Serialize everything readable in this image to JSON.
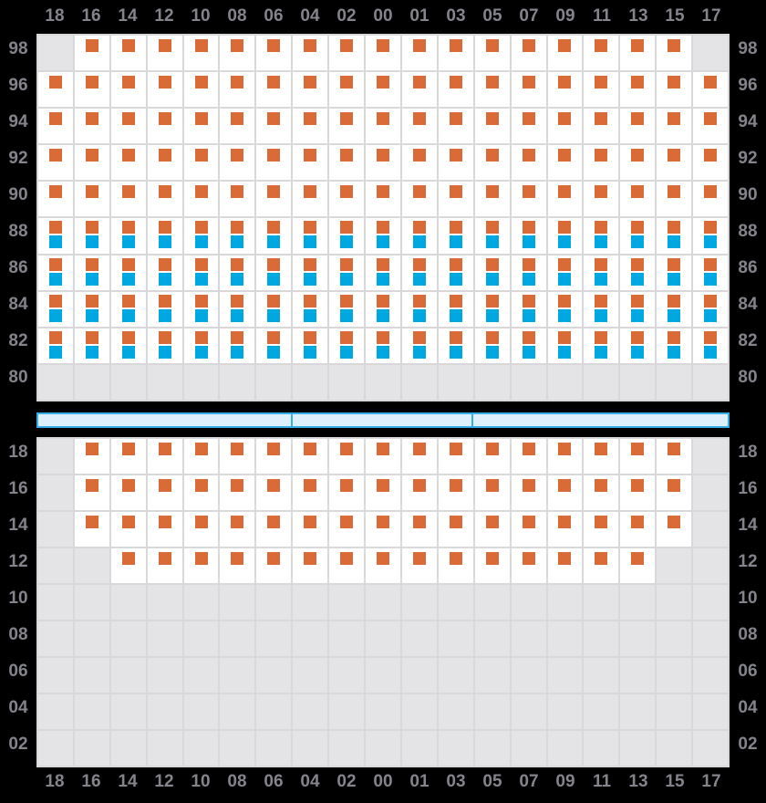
{
  "colors": {
    "background": "#000000",
    "cell_white": "#ffffff",
    "cell_gray": "#e4e4e6",
    "grid_line": "#d8d8da",
    "orange_marker": "#db6b36",
    "blue_marker": "#00a8e1",
    "bar_fill": "#ddf0fb",
    "bar_border": "#35ade6",
    "label_text": "#84848c"
  },
  "column_labels": [
    "18",
    "16",
    "14",
    "12",
    "10",
    "08",
    "06",
    "04",
    "02",
    "00",
    "01",
    "03",
    "05",
    "07",
    "09",
    "11",
    "13",
    "15",
    "17"
  ],
  "cell_types": {
    "g": "blocked-gray",
    "o": "orange-marker",
    "d": "orange-and-blue-marker"
  },
  "top_panel": {
    "rows": [
      {
        "label": "98",
        "cells": "gooooooooooooooooog"
      },
      {
        "label": "96",
        "cells": "ooooooooooooooooooo"
      },
      {
        "label": "94",
        "cells": "ooooooooooooooooooo"
      },
      {
        "label": "92",
        "cells": "ooooooooooooooooooo"
      },
      {
        "label": "90",
        "cells": "ooooooooooooooooooo"
      },
      {
        "label": "88",
        "cells": "ddddddddddddddddddd"
      },
      {
        "label": "86",
        "cells": "ddddddddddddddddddd"
      },
      {
        "label": "84",
        "cells": "ddddddddddddddddddd"
      },
      {
        "label": "82",
        "cells": "ddddddddddddddddddd"
      },
      {
        "label": "80",
        "cells": "ggggggggggggggggggg"
      }
    ]
  },
  "section_bar": {
    "total_cols": 19,
    "segment_boundaries_cols": [
      7,
      12
    ]
  },
  "bottom_panel": {
    "rows": [
      {
        "label": "18",
        "cells": "gooooooooooooooooog"
      },
      {
        "label": "16",
        "cells": "gooooooooooooooooog"
      },
      {
        "label": "14",
        "cells": "gooooooooooooooooog"
      },
      {
        "label": "12",
        "cells": "ggooooooooooooooogg"
      },
      {
        "label": "10",
        "cells": "ggggggggggggggggggg"
      },
      {
        "label": "08",
        "cells": "ggggggggggggggggggg"
      },
      {
        "label": "06",
        "cells": "ggggggggggggggggggg"
      },
      {
        "label": "04",
        "cells": "ggggggggggggggggggg"
      },
      {
        "label": "02",
        "cells": "ggggggggggggggggggg"
      }
    ]
  }
}
